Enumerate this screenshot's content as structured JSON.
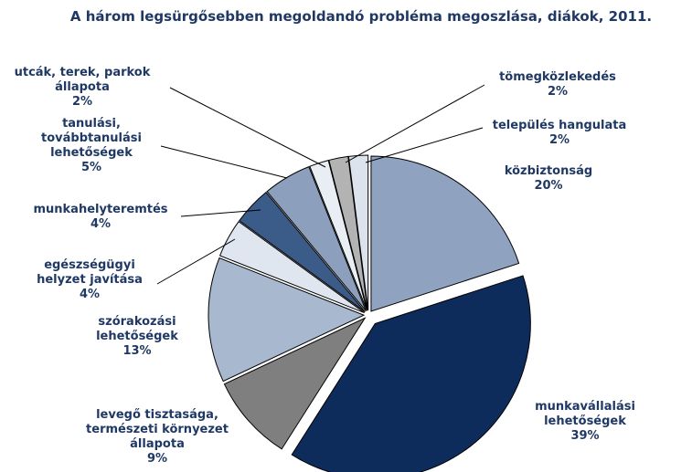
{
  "chart_data": {
    "type": "pie",
    "title": "A három legsürgősebben megoldandó probléma megoszlása, diákok, 2011.",
    "categories": [
      "közbiztonság",
      "munkavállalási lehetőségek",
      "levegő tisztasága, természeti környezet állapota",
      "szórakozási lehetőségek",
      "egészségügyi helyzet javítása",
      "munkahelyteremtés",
      "tanulási, továbbtanulási lehetőségek",
      "utcák, terek, parkok állapota",
      "tömegközlekedés",
      "település hangulata"
    ],
    "values": [
      20,
      39,
      9,
      13,
      4,
      4,
      5,
      2,
      2,
      2
    ],
    "value_labels": [
      "20%",
      "39%",
      "9%",
      "13%",
      "4%",
      "4%",
      "5%",
      "2%",
      "2%",
      "2%"
    ],
    "colors": [
      "#8fa3c1",
      "#0e2c5b",
      "#7f7f7f",
      "#a8b8cf",
      "#dfe6ef",
      "#3b5b89",
      "#8c9fbd",
      "#e9eef4",
      "#b3b3b3",
      "#dce3ed"
    ]
  }
}
